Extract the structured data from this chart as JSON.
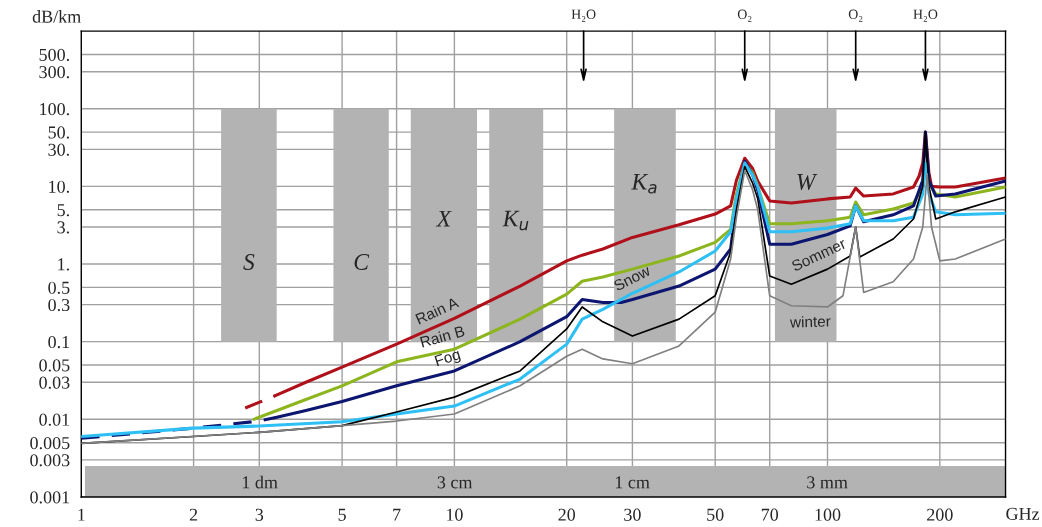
{
  "chart_data": {
    "type": "line",
    "xlabel": "GHz",
    "ylabel": "dB/km",
    "log": "xy",
    "grid": true,
    "legend": false,
    "xlim": [
      1,
      300
    ],
    "ylim": [
      0.001,
      1000
    ],
    "xticks": [
      1,
      2,
      3,
      5,
      7,
      10,
      20,
      30,
      50,
      70,
      100,
      200
    ],
    "yticks": [
      0.001,
      0.003,
      0.005,
      0.01,
      0.03,
      0.05,
      0.1,
      0.3,
      0.5,
      {
        "value": 1,
        "label": "1."
      },
      {
        "value": 3,
        "label": "3."
      },
      {
        "value": 5,
        "label": "5."
      },
      {
        "value": 10,
        "label": "10."
      },
      {
        "value": 30,
        "label": "30."
      },
      {
        "value": 50,
        "label": "50."
      },
      {
        "value": 100,
        "label": "100."
      },
      {
        "value": 300,
        "label": "300."
      },
      {
        "value": 500,
        "label": "500."
      }
    ],
    "bands": [
      {
        "axis": "x",
        "from": 2.37,
        "to": 3.34,
        "color": "#b3b3b3",
        "label": "S"
      },
      {
        "axis": "x",
        "from": 4.74,
        "to": 6.67,
        "color": "#b3b3b3",
        "label": "C"
      },
      {
        "axis": "x",
        "from": 7.64,
        "to": 11.5,
        "color": "#b3b3b3",
        "label": "X"
      },
      {
        "axis": "x",
        "from": 12.4,
        "to": 17.3,
        "color": "#b3b3b3",
        "label": "K$_{u}$"
      },
      {
        "axis": "x",
        "from": 26.8,
        "to": 39.2,
        "color": "#b3b3b3",
        "label": "K$_{a}$"
      },
      {
        "axis": "x",
        "from": 72.3,
        "to": 105.7,
        "color": "#b3b3b3",
        "label": "W"
      },
      {
        "axis": "y",
        "from": 0.001,
        "to": 0.0025,
        "color": "#b3b3b3"
      }
    ],
    "annotations": [
      "1 dm",
      "3 cm",
      "1 cm",
      "3 mm"
    ],
    "ref_lines": [
      {
        "axis": "x",
        "value": 22.2,
        "label": "H₂O"
      },
      {
        "axis": "x",
        "value": 60,
        "label": "O₂"
      },
      {
        "axis": "x",
        "value": 119,
        "label": "O₂"
      },
      {
        "axis": "x",
        "value": 183,
        "label": "H₂O"
      }
    ],
    "series": [
      {
        "name": "Rain A",
        "color": "#b0101a",
        "x": [
          3.3,
          4,
          5,
          7,
          10,
          15,
          20,
          22,
          25,
          30,
          40,
          50,
          55,
          57,
          60,
          63,
          65,
          70,
          80,
          100,
          115,
          119,
          125,
          150,
          170,
          176,
          180,
          183,
          187,
          190,
          200,
          220,
          300
        ],
        "values": [
          0.02,
          0.03,
          0.047,
          0.093,
          0.2,
          0.52,
          1.1,
          1.3,
          1.56,
          2.2,
          3.2,
          4.4,
          5.6,
          12,
          23,
          17,
          11.7,
          6.5,
          6.1,
          6.9,
          7.3,
          9.5,
          7.5,
          8.0,
          9.8,
          13.6,
          20,
          50,
          15,
          10,
          9.8,
          9.8,
          12.8
        ]
      },
      {
        "color": "#b0101a",
        "line_style": "dashed",
        "x": [
          2.75,
          3.3
        ],
        "values": [
          0.014,
          0.02
        ]
      },
      {
        "name": "Rain B",
        "color": "#8db51e",
        "x": [
          2.9,
          4,
          5,
          7,
          10,
          15,
          20,
          22,
          25,
          30,
          40,
          50,
          55,
          57,
          60,
          63,
          65,
          70,
          80,
          100,
          115,
          119,
          125,
          150,
          170,
          180,
          183,
          187,
          195,
          220,
          300
        ],
        "values": [
          0.01,
          0.018,
          0.027,
          0.055,
          0.08,
          0.195,
          0.41,
          0.6,
          0.68,
          0.86,
          1.27,
          1.9,
          2.8,
          8,
          20,
          15,
          10,
          3.3,
          3.3,
          3.6,
          4.0,
          6.3,
          4.3,
          5.1,
          6.1,
          10,
          20,
          11,
          8,
          7.3,
          9.8
        ]
      },
      {
        "name": "Fog",
        "color": "#0c1670",
        "x": [
          3.3,
          4,
          5,
          7,
          10,
          15,
          20,
          22,
          25,
          28,
          30,
          40,
          50,
          55,
          57,
          60,
          63,
          65,
          70,
          80,
          100,
          115,
          119,
          125,
          150,
          170,
          180,
          183,
          187,
          195,
          220,
          300
        ],
        "values": [
          0.0105,
          0.013,
          0.017,
          0.027,
          0.042,
          0.1,
          0.21,
          0.35,
          0.32,
          0.32,
          0.35,
          0.52,
          0.86,
          1.56,
          6,
          21,
          14,
          9,
          1.8,
          1.8,
          2.4,
          3.1,
          5.6,
          3.5,
          4.3,
          5.6,
          12,
          50,
          12,
          7.5,
          8.0,
          11.7
        ]
      },
      {
        "color": "#0c1670",
        "line_style": "dashed",
        "x": [
          1,
          2,
          3,
          3.3
        ],
        "values": [
          0.0057,
          0.0077,
          0.0095,
          0.0105
        ]
      },
      {
        "name": "Snow",
        "color": "#2ec0f5",
        "x": [
          1,
          2,
          3,
          5,
          7,
          10,
          15,
          20,
          22,
          25,
          30,
          40,
          50,
          55,
          57,
          60,
          63,
          65,
          70,
          80,
          100,
          115,
          119,
          125,
          150,
          170,
          180,
          183,
          187,
          195,
          220,
          300
        ],
        "values": [
          0.006,
          0.0077,
          0.0082,
          0.0093,
          0.0117,
          0.0148,
          0.033,
          0.093,
          0.195,
          0.26,
          0.42,
          0.79,
          1.47,
          2.6,
          7,
          20,
          14,
          10,
          2.6,
          2.6,
          2.9,
          3.3,
          5.6,
          3.6,
          3.6,
          4.0,
          8,
          20,
          8,
          4.7,
          4.3,
          4.5
        ]
      },
      {
        "name": "Sommer",
        "color": "#000000",
        "x": [
          1,
          2,
          3,
          5,
          7,
          10,
          15,
          20,
          22,
          25,
          30,
          40,
          50,
          55,
          57,
          60,
          63,
          65,
          70,
          80,
          100,
          115,
          119,
          122,
          150,
          170,
          180,
          183,
          187,
          195,
          220,
          300
        ],
        "values": [
          0.0049,
          0.006,
          0.0068,
          0.0083,
          0.0124,
          0.0193,
          0.042,
          0.146,
          0.28,
          0.18,
          0.118,
          0.195,
          0.39,
          1.43,
          5,
          18,
          11,
          7,
          0.7,
          0.55,
          0.86,
          1.27,
          3.0,
          1.23,
          2.1,
          3.8,
          10,
          50,
          10,
          3.8,
          4.7,
          7.3
        ]
      },
      {
        "name": "winter",
        "color": "#808080",
        "x": [
          1,
          3,
          5,
          7,
          10,
          15,
          20,
          22,
          25,
          30,
          40,
          50,
          55,
          57,
          60,
          63,
          65,
          70,
          80,
          100,
          110,
          119,
          125,
          150,
          170,
          180,
          185,
          190,
          200,
          220,
          300
        ],
        "values": [
          0.0049,
          0.0068,
          0.0083,
          0.0095,
          0.0117,
          0.027,
          0.065,
          0.08,
          0.06,
          0.052,
          0.088,
          0.24,
          1.16,
          4,
          16,
          9,
          5,
          0.39,
          0.29,
          0.28,
          0.39,
          3.0,
          0.43,
          0.59,
          1.16,
          3,
          14.5,
          3,
          1.1,
          1.16,
          2.1
        ]
      }
    ]
  }
}
